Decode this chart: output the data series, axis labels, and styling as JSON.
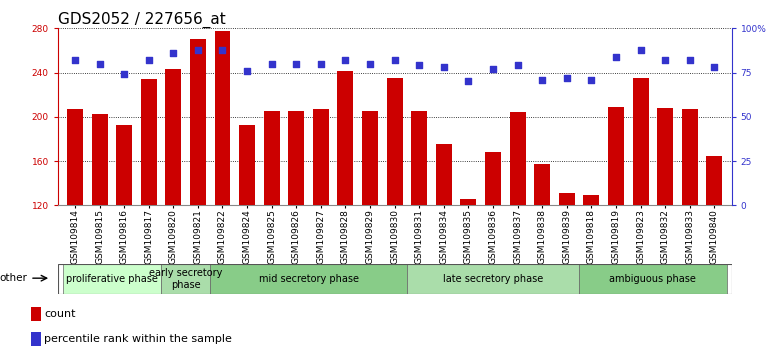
{
  "title": "GDS2052 / 227656_at",
  "samples": [
    "GSM109814",
    "GSM109815",
    "GSM109816",
    "GSM109817",
    "GSM109820",
    "GSM109821",
    "GSM109822",
    "GSM109824",
    "GSM109825",
    "GSM109826",
    "GSM109827",
    "GSM109828",
    "GSM109829",
    "GSM109830",
    "GSM109831",
    "GSM109834",
    "GSM109835",
    "GSM109836",
    "GSM109837",
    "GSM109838",
    "GSM109839",
    "GSM109818",
    "GSM109819",
    "GSM109823",
    "GSM109832",
    "GSM109833",
    "GSM109840"
  ],
  "counts": [
    207,
    203,
    193,
    234,
    243,
    270,
    278,
    193,
    205,
    205,
    207,
    241,
    205,
    235,
    205,
    175,
    126,
    168,
    204,
    157,
    131,
    129,
    209,
    235,
    208,
    207,
    165
  ],
  "percentiles": [
    82,
    80,
    74,
    82,
    86,
    88,
    88,
    76,
    80,
    80,
    80,
    82,
    80,
    82,
    79,
    78,
    70,
    77,
    79,
    71,
    72,
    71,
    84,
    88,
    82,
    82,
    78
  ],
  "ylim_left": [
    120,
    280
  ],
  "ylim_right": [
    0,
    100
  ],
  "yticks_left": [
    120,
    160,
    200,
    240,
    280
  ],
  "yticks_right": [
    0,
    25,
    50,
    75,
    100
  ],
  "bar_color": "#CC0000",
  "dot_color": "#3333CC",
  "phases": [
    {
      "label": "proliferative phase",
      "start": 0,
      "end": 4,
      "color": "#ccffcc"
    },
    {
      "label": "early secretory\nphase",
      "start": 4,
      "end": 6,
      "color": "#aaddaa"
    },
    {
      "label": "mid secretory phase",
      "start": 6,
      "end": 14,
      "color": "#88cc88"
    },
    {
      "label": "late secretory phase",
      "start": 14,
      "end": 21,
      "color": "#aaddaa"
    },
    {
      "label": "ambiguous phase",
      "start": 21,
      "end": 27,
      "color": "#88cc88"
    }
  ],
  "other_label": "other",
  "legend_items": [
    {
      "label": "count",
      "color": "#CC0000"
    },
    {
      "label": "percentile rank within the sample",
      "color": "#3333CC"
    }
  ],
  "title_fontsize": 11,
  "tick_fontsize": 6.5,
  "phase_fontsize": 7,
  "legend_fontsize": 8
}
